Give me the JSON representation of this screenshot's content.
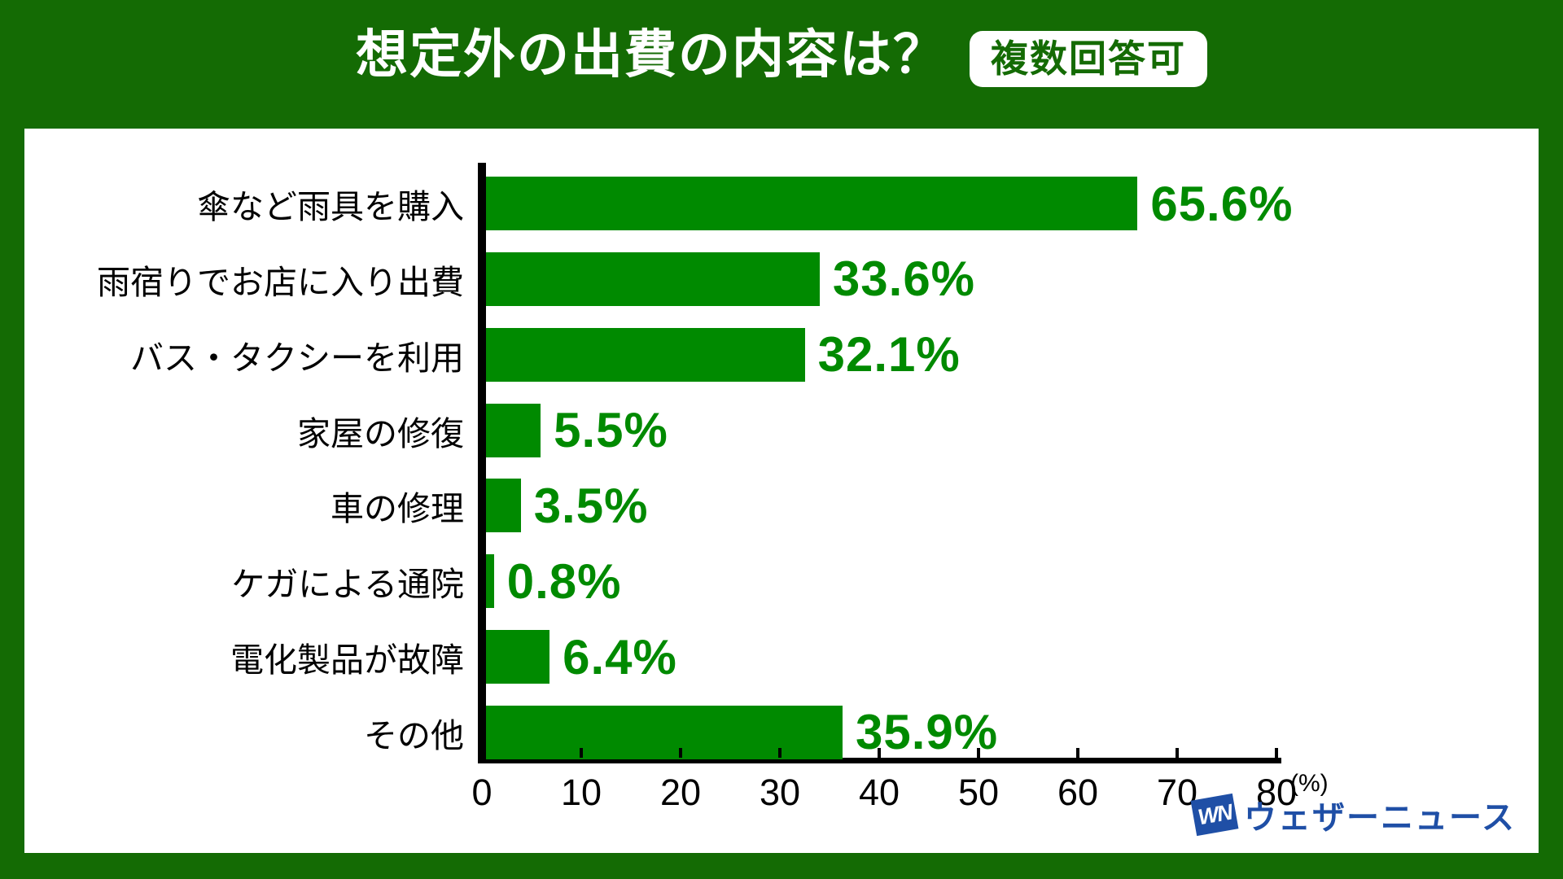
{
  "page": {
    "background_color": "#146B04",
    "panel_color": "#FFFFFF"
  },
  "header": {
    "title": "想定外の出費の内容は？",
    "badge": "複数回答可"
  },
  "chart_data": {
    "type": "bar",
    "orientation": "horizontal",
    "title": "想定外の出費の内容は？",
    "subtitle_badge": "複数回答可",
    "categories": [
      "傘など雨具を購入",
      "雨宿りでお店に入り出費",
      "バス・タクシーを利用",
      "家屋の修復",
      "車の修理",
      "ケガによる通院",
      "電化製品が故障",
      "その他"
    ],
    "values": [
      65.6,
      33.6,
      32.1,
      5.5,
      3.5,
      0.8,
      6.4,
      35.9
    ],
    "value_labels": [
      "65.6%",
      "33.6%",
      "32.1%",
      "5.5%",
      "3.5%",
      "0.8%",
      "6.4%",
      "35.9%"
    ],
    "xlim": [
      0,
      80
    ],
    "xticks": [
      0,
      10,
      20,
      30,
      40,
      50,
      60,
      70,
      80
    ],
    "xtick_labels": [
      "0",
      "10",
      "20",
      "30",
      "40",
      "50",
      "60",
      "70",
      "80"
    ],
    "xlabel_unit": "(%)",
    "grid": false,
    "legend": "none",
    "bar_color": "#008A00",
    "value_label_color": "#008A00",
    "axis_color": "#000000"
  },
  "footer": {
    "logo_mark": "WN",
    "logo_text": "ウェザーニュース",
    "logo_color": "#1F4FA6"
  }
}
